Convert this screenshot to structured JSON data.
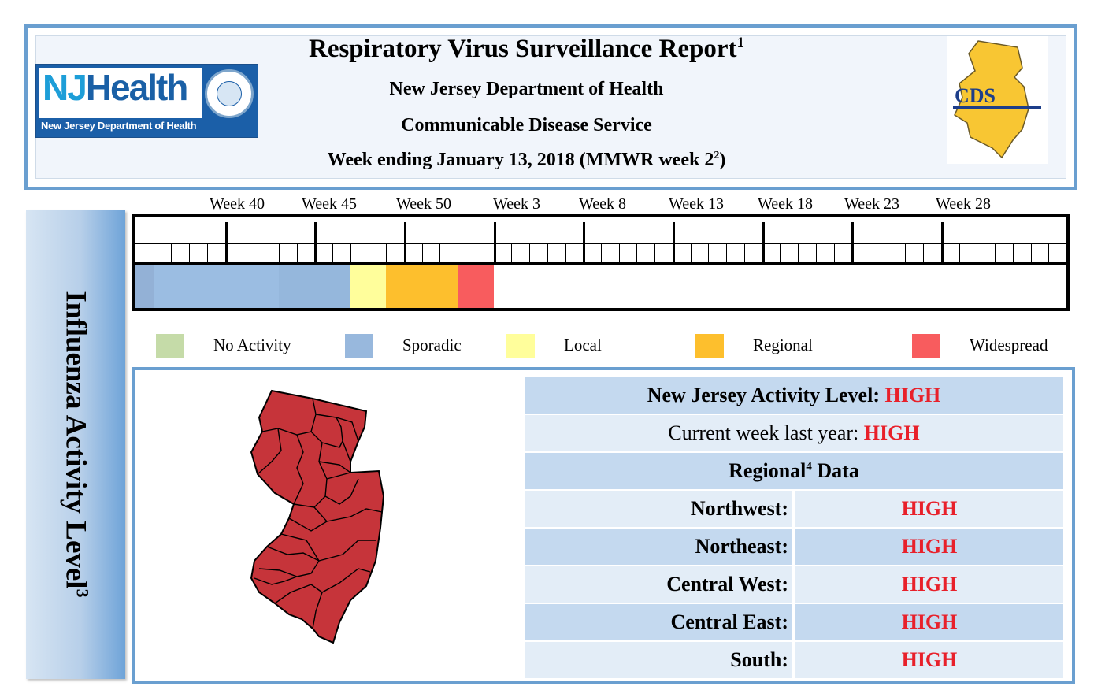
{
  "header": {
    "title": "Respiratory Virus Surveillance Report",
    "title_sup": "1",
    "department": "New Jersey Department of Health",
    "service": "Communicable Disease Service",
    "week_line_prefix": "Week ending January 13, 2018 (MMWR week 2",
    "week_line_sup": "2",
    "week_line_suffix": ")"
  },
  "logo": {
    "nj": "NJ",
    "health": "Health",
    "dept": "New Jersey Department of Health",
    "cds": "CDS"
  },
  "side_label": {
    "text": "Influenza Activity Level",
    "sup": "3"
  },
  "timeline": {
    "week_labels": [
      "Week 40",
      "Week 45",
      "Week 50",
      "Week 3",
      "Week 8",
      "Week 13",
      "Week 18",
      "Week 23",
      "Week 28"
    ],
    "total_weeks": 52,
    "segments": [
      {
        "level": "Sporadic",
        "start_week_index": 0,
        "weeks": 1,
        "color": "#93b1d6"
      },
      {
        "level": "Sporadic",
        "start_week_index": 1,
        "weeks": 7,
        "color": "#9bbde2"
      },
      {
        "level": "Sporadic",
        "start_week_index": 8,
        "weeks": 4,
        "color": "#95b7dc"
      },
      {
        "level": "Local",
        "start_week_index": 12,
        "weeks": 2,
        "color": "#fffe9b"
      },
      {
        "level": "Regional",
        "start_week_index": 14,
        "weeks": 4,
        "color": "#fdbf2d"
      },
      {
        "level": "Widespread",
        "start_week_index": 18,
        "weeks": 2,
        "color": "#f85c5e"
      }
    ]
  },
  "legend": [
    {
      "label": "No Activity",
      "color": "#c5dba8"
    },
    {
      "label": "Sporadic",
      "color": "#98b8dd"
    },
    {
      "label": "Local",
      "color": "#fffe9b"
    },
    {
      "label": "Regional",
      "color": "#fdbf2d"
    },
    {
      "label": "Widespread",
      "color": "#f85c5e"
    }
  ],
  "activity": {
    "nj_label": "New Jersey Activity Level: ",
    "nj_value": "HIGH",
    "last_year_label": "Current week last year: ",
    "last_year_value": "HIGH",
    "regional_prefix": "Regional",
    "regional_sup": "4",
    "regional_suffix": " Data",
    "regions": [
      {
        "name": "Northwest:",
        "value": "HIGH"
      },
      {
        "name": "Northeast:",
        "value": "HIGH"
      },
      {
        "name": "Central West:",
        "value": "HIGH"
      },
      {
        "name": "Central East:",
        "value": "HIGH"
      },
      {
        "name": "South:",
        "value": "HIGH"
      }
    ]
  },
  "colors": {
    "accent_border": "#6a9fd0",
    "high_text": "#e8202a",
    "map_fill": "#c6343a"
  }
}
